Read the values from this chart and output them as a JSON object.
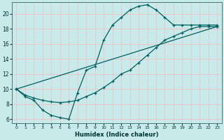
{
  "xlabel": "Humidex (Indice chaleur)",
  "bg_color": "#c8eaea",
  "grid_color": "#e8c8c8",
  "line_color": "#006060",
  "xlim": [
    -0.5,
    23.5
  ],
  "ylim": [
    5.5,
    21.5
  ],
  "xticks": [
    0,
    1,
    2,
    3,
    4,
    5,
    6,
    7,
    8,
    9,
    10,
    11,
    12,
    13,
    14,
    15,
    16,
    17,
    18,
    19,
    20,
    21,
    22,
    23
  ],
  "yticks": [
    6,
    8,
    10,
    12,
    14,
    16,
    18,
    20
  ],
  "line1_x": [
    0,
    1,
    2,
    3,
    4,
    5,
    6,
    7,
    8,
    9,
    10,
    11,
    12,
    13,
    14,
    15,
    16,
    17,
    18,
    19,
    20,
    21,
    22,
    23
  ],
  "line1_y": [
    10.0,
    9.0,
    8.5,
    7.2,
    6.5,
    6.2,
    6.0,
    9.5,
    12.5,
    13.0,
    16.5,
    18.5,
    19.5,
    20.5,
    21.0,
    21.2,
    20.5,
    19.5,
    18.5,
    18.5,
    18.5,
    18.5,
    18.5,
    18.5
  ],
  "line2_x": [
    0,
    1,
    2,
    3,
    4,
    5,
    6,
    7,
    8,
    9,
    10,
    11,
    12,
    13,
    14,
    15,
    16,
    17,
    18,
    19,
    20,
    21,
    22,
    23
  ],
  "line2_y": [
    10.0,
    9.2,
    8.8,
    8.5,
    8.3,
    8.2,
    8.3,
    8.5,
    9.0,
    9.5,
    10.2,
    11.0,
    12.0,
    12.5,
    13.5,
    14.5,
    15.5,
    16.5,
    17.0,
    17.5,
    18.0,
    18.3,
    18.3,
    18.3
  ],
  "line3_x": [
    0,
    23
  ],
  "line3_y": [
    10.0,
    18.3
  ]
}
